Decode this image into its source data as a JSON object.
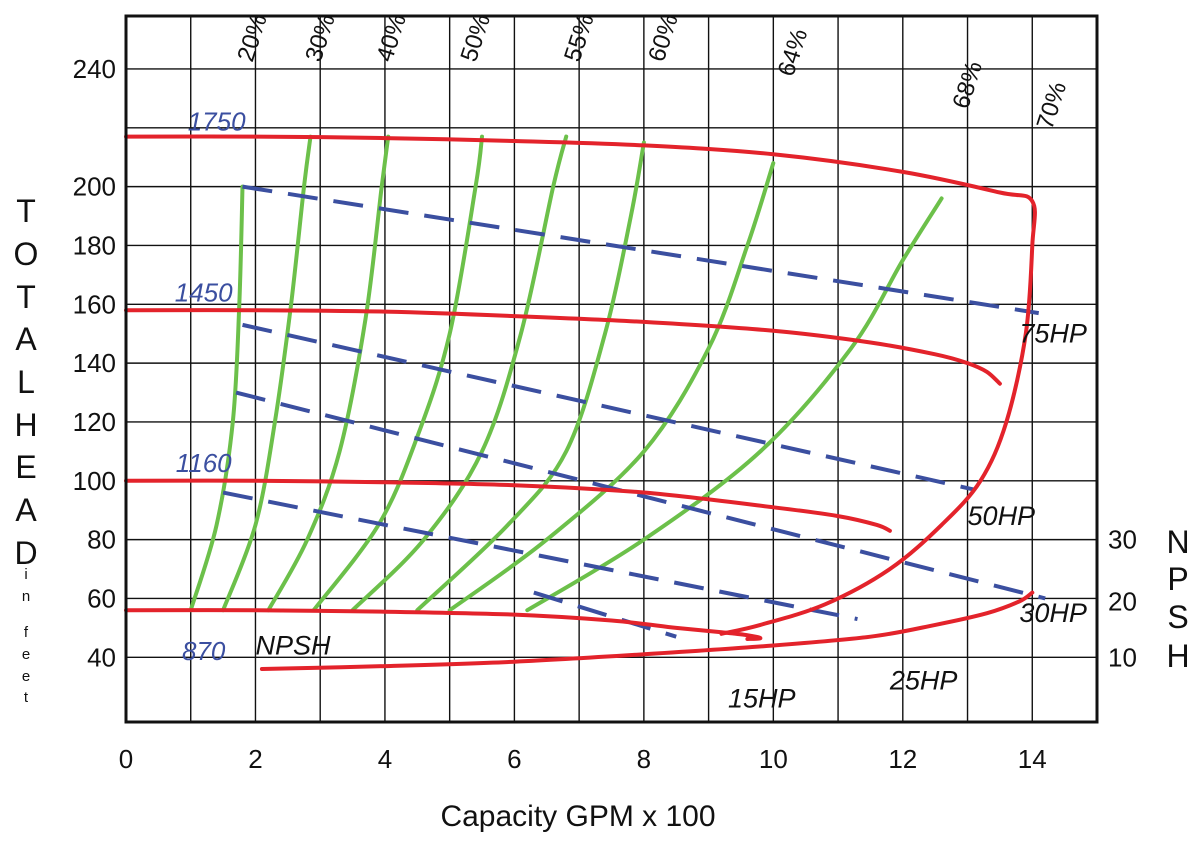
{
  "chart_data": {
    "type": "line",
    "title": "",
    "xlabel": "Capacity GPM x 100",
    "ylabel": "TOTAL HEAD in feet",
    "y2label": "NPSH",
    "xlim": [
      0,
      15
    ],
    "ylim": [
      18,
      258
    ],
    "x_ticks": [
      0,
      2,
      4,
      6,
      8,
      10,
      12,
      14
    ],
    "y_ticks": [
      40,
      60,
      80,
      100,
      120,
      140,
      160,
      180,
      200,
      240
    ],
    "npsh_ticks": [
      {
        "label": "10",
        "y": 40
      },
      {
        "label": "20",
        "y": 59
      },
      {
        "label": "30",
        "y": 80
      }
    ],
    "grid": true,
    "speed_curves": [
      {
        "name": "1750",
        "color": "#e3232b",
        "points": [
          [
            0,
            217
          ],
          [
            2,
            217
          ],
          [
            4,
            216.5
          ],
          [
            6,
            215.5
          ],
          [
            8,
            214
          ],
          [
            10,
            211
          ],
          [
            12,
            205
          ],
          [
            13.5,
            198
          ],
          [
            14,
            195
          ],
          [
            14,
            180
          ],
          [
            13.9,
            150
          ],
          [
            13.6,
            120
          ],
          [
            13.2,
            100
          ],
          [
            12.6,
            85
          ],
          [
            11.8,
            70
          ],
          [
            10.8,
            58
          ],
          [
            9.8,
            51
          ],
          [
            9.2,
            48
          ]
        ]
      },
      {
        "name": "1450",
        "color": "#e3232b",
        "points": [
          [
            0,
            158
          ],
          [
            2,
            158
          ],
          [
            4,
            157.5
          ],
          [
            6,
            156
          ],
          [
            8,
            154
          ],
          [
            10,
            151
          ],
          [
            11.5,
            147
          ],
          [
            12.5,
            143
          ],
          [
            13,
            140
          ],
          [
            13.3,
            137
          ],
          [
            13.5,
            133
          ]
        ]
      },
      {
        "name": "1160",
        "color": "#e3232b",
        "points": [
          [
            0,
            100
          ],
          [
            2,
            100
          ],
          [
            4,
            99.5
          ],
          [
            6,
            98.5
          ],
          [
            8,
            96
          ],
          [
            10,
            91
          ],
          [
            11,
            88
          ],
          [
            11.6,
            85
          ],
          [
            11.8,
            83
          ]
        ]
      },
      {
        "name": "870",
        "color": "#e3232b",
        "points": [
          [
            0,
            56
          ],
          [
            2,
            56
          ],
          [
            4,
            55.5
          ],
          [
            6,
            54.5
          ],
          [
            7.5,
            52.5
          ],
          [
            8.5,
            50
          ],
          [
            9.2,
            48.5
          ],
          [
            9.6,
            47.5
          ],
          [
            9.8,
            46.5
          ],
          [
            9.6,
            46.2
          ]
        ]
      }
    ],
    "npsh_curve": {
      "name": "NPSH",
      "color": "#e3232b",
      "points": [
        [
          2.1,
          36
        ],
        [
          4,
          37
        ],
        [
          6,
          38.5
        ],
        [
          8,
          41
        ],
        [
          10,
          44
        ],
        [
          11.5,
          47
        ],
        [
          12.5,
          51
        ],
        [
          13.3,
          55
        ],
        [
          13.8,
          59
        ],
        [
          14,
          62
        ]
      ]
    },
    "efficiency_curves": [
      {
        "name": "20%",
        "color": "#6cc04a",
        "points": [
          [
            1.0,
            56
          ],
          [
            1.4,
            85
          ],
          [
            1.65,
            120
          ],
          [
            1.75,
            160
          ],
          [
            1.8,
            200
          ]
        ]
      },
      {
        "name": "30%",
        "color": "#6cc04a",
        "points": [
          [
            1.5,
            56
          ],
          [
            2.0,
            85
          ],
          [
            2.3,
            120
          ],
          [
            2.55,
            160
          ],
          [
            2.75,
            200
          ],
          [
            2.85,
            217
          ]
        ]
      },
      {
        "name": "40%",
        "color": "#6cc04a",
        "points": [
          [
            2.2,
            56
          ],
          [
            2.8,
            80
          ],
          [
            3.3,
            110
          ],
          [
            3.7,
            155
          ],
          [
            3.95,
            200
          ],
          [
            4.05,
            217
          ]
        ]
      },
      {
        "name": "50%",
        "color": "#6cc04a",
        "points": [
          [
            2.9,
            56
          ],
          [
            3.9,
            85
          ],
          [
            4.5,
            115
          ],
          [
            5.0,
            150
          ],
          [
            5.4,
            200
          ],
          [
            5.5,
            217
          ]
        ]
      },
      {
        "name": "55%",
        "color": "#6cc04a",
        "points": [
          [
            3.5,
            56
          ],
          [
            4.6,
            80
          ],
          [
            5.5,
            110
          ],
          [
            6.1,
            150
          ],
          [
            6.6,
            200
          ],
          [
            6.8,
            217
          ]
        ]
      },
      {
        "name": "60%",
        "color": "#6cc04a",
        "points": [
          [
            4.5,
            56
          ],
          [
            5.9,
            85
          ],
          [
            6.8,
            110
          ],
          [
            7.4,
            150
          ],
          [
            7.8,
            190
          ],
          [
            8.0,
            215
          ]
        ]
      },
      {
        "name": "64%",
        "color": "#6cc04a",
        "points": [
          [
            5.0,
            56
          ],
          [
            6.5,
            80
          ],
          [
            8.0,
            110
          ],
          [
            9.0,
            145
          ],
          [
            9.6,
            180
          ],
          [
            10.0,
            208
          ]
        ]
      },
      {
        "name": "68%",
        "color": "#6cc04a",
        "points": [
          [
            6.2,
            56
          ],
          [
            8.0,
            80
          ],
          [
            9.8,
            110
          ],
          [
            11.2,
            145
          ],
          [
            12.0,
            175
          ],
          [
            12.6,
            196
          ]
        ]
      },
      {
        "name": "70%",
        "color": "#6cc04a",
        "points": []
      }
    ],
    "hp_lines": [
      {
        "name": "75HP",
        "color": "#3b4fa0",
        "points": [
          [
            1.8,
            200
          ],
          [
            14.1,
            157
          ]
        ]
      },
      {
        "name": "50HP",
        "color": "#3b4fa0",
        "points": [
          [
            1.8,
            153
          ],
          [
            13.1,
            97
          ]
        ]
      },
      {
        "name": "30HP",
        "color": "#3b4fa0",
        "points": [
          [
            1.7,
            130
          ],
          [
            14.2,
            60
          ]
        ]
      },
      {
        "name": "25HP",
        "color": "#3b4fa0",
        "points": [
          [
            1.5,
            96
          ],
          [
            11.3,
            53
          ]
        ]
      },
      {
        "name": "15HP",
        "color": "#3b4fa0",
        "points": [
          [
            6.3,
            62
          ],
          [
            8.5,
            47
          ]
        ]
      }
    ],
    "labels": {
      "speeds": [
        "1750",
        "1450",
        "1160",
        "870"
      ],
      "efficiencies": [
        "20%",
        "30%",
        "40%",
        "50%",
        "55%",
        "60%",
        "64%",
        "68%",
        "70%"
      ],
      "hp": [
        "75HP",
        "50HP",
        "30HP",
        "25HP",
        "15HP"
      ],
      "npsh_curve_label": "NPSH",
      "left_title_letters": [
        "T",
        "O",
        "T",
        "A",
        "L",
        "H",
        "E",
        "A",
        "D"
      ],
      "left_title_small": [
        "i",
        "n",
        "f",
        "e",
        "e",
        "t"
      ],
      "right_title_letters": [
        "N",
        "P",
        "S",
        "H"
      ]
    }
  }
}
